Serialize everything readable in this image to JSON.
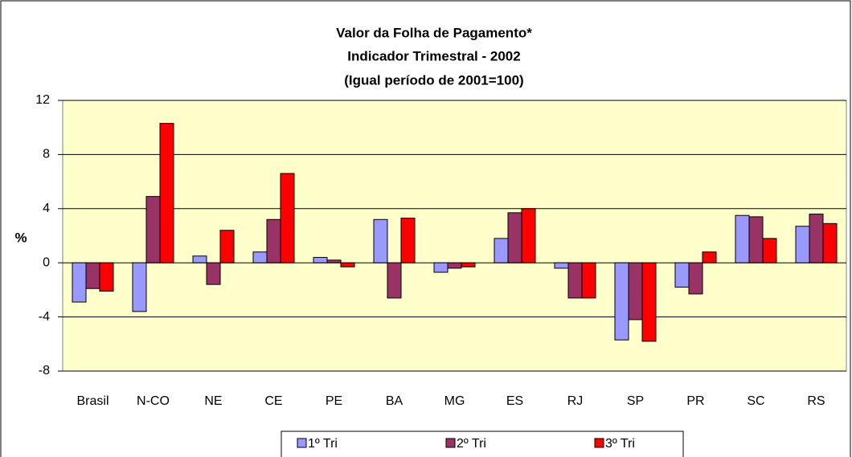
{
  "chart_data": {
    "type": "bar",
    "title": [
      "Valor da Folha de Pagamento*",
      "Indicador Trimestral - 2002",
      "(Igual período de 2001=100)"
    ],
    "y_label": "%",
    "categories": [
      "Brasil",
      "N-CO",
      "NE",
      "CE",
      "PE",
      "BA",
      "MG",
      "ES",
      "RJ",
      "SP",
      "PR",
      "SC",
      "RS"
    ],
    "series": [
      {
        "name": "1º Tri",
        "color": "#9999ff",
        "values": [
          -2.9,
          -3.6,
          0.5,
          0.8,
          0.4,
          3.2,
          -0.7,
          1.8,
          -0.4,
          -5.7,
          -1.8,
          3.5,
          2.7
        ]
      },
      {
        "name": "2º Tri",
        "color": "#993366",
        "values": [
          -1.9,
          4.9,
          -1.6,
          3.2,
          0.2,
          -2.6,
          -0.4,
          3.7,
          -2.6,
          -4.2,
          -2.3,
          3.4,
          3.6
        ]
      },
      {
        "name": "3º Tri",
        "color": "#ff0000",
        "values": [
          -2.1,
          10.3,
          2.4,
          6.6,
          -0.3,
          3.3,
          -0.3,
          4.0,
          -2.6,
          -5.8,
          0.8,
          1.8,
          2.9
        ]
      }
    ],
    "ylim": [
      -8,
      12
    ],
    "yticks": [
      -8,
      -4,
      0,
      4,
      8,
      12
    ],
    "grid": true,
    "plot_background": "#ffffcc",
    "legend": "bottom"
  }
}
